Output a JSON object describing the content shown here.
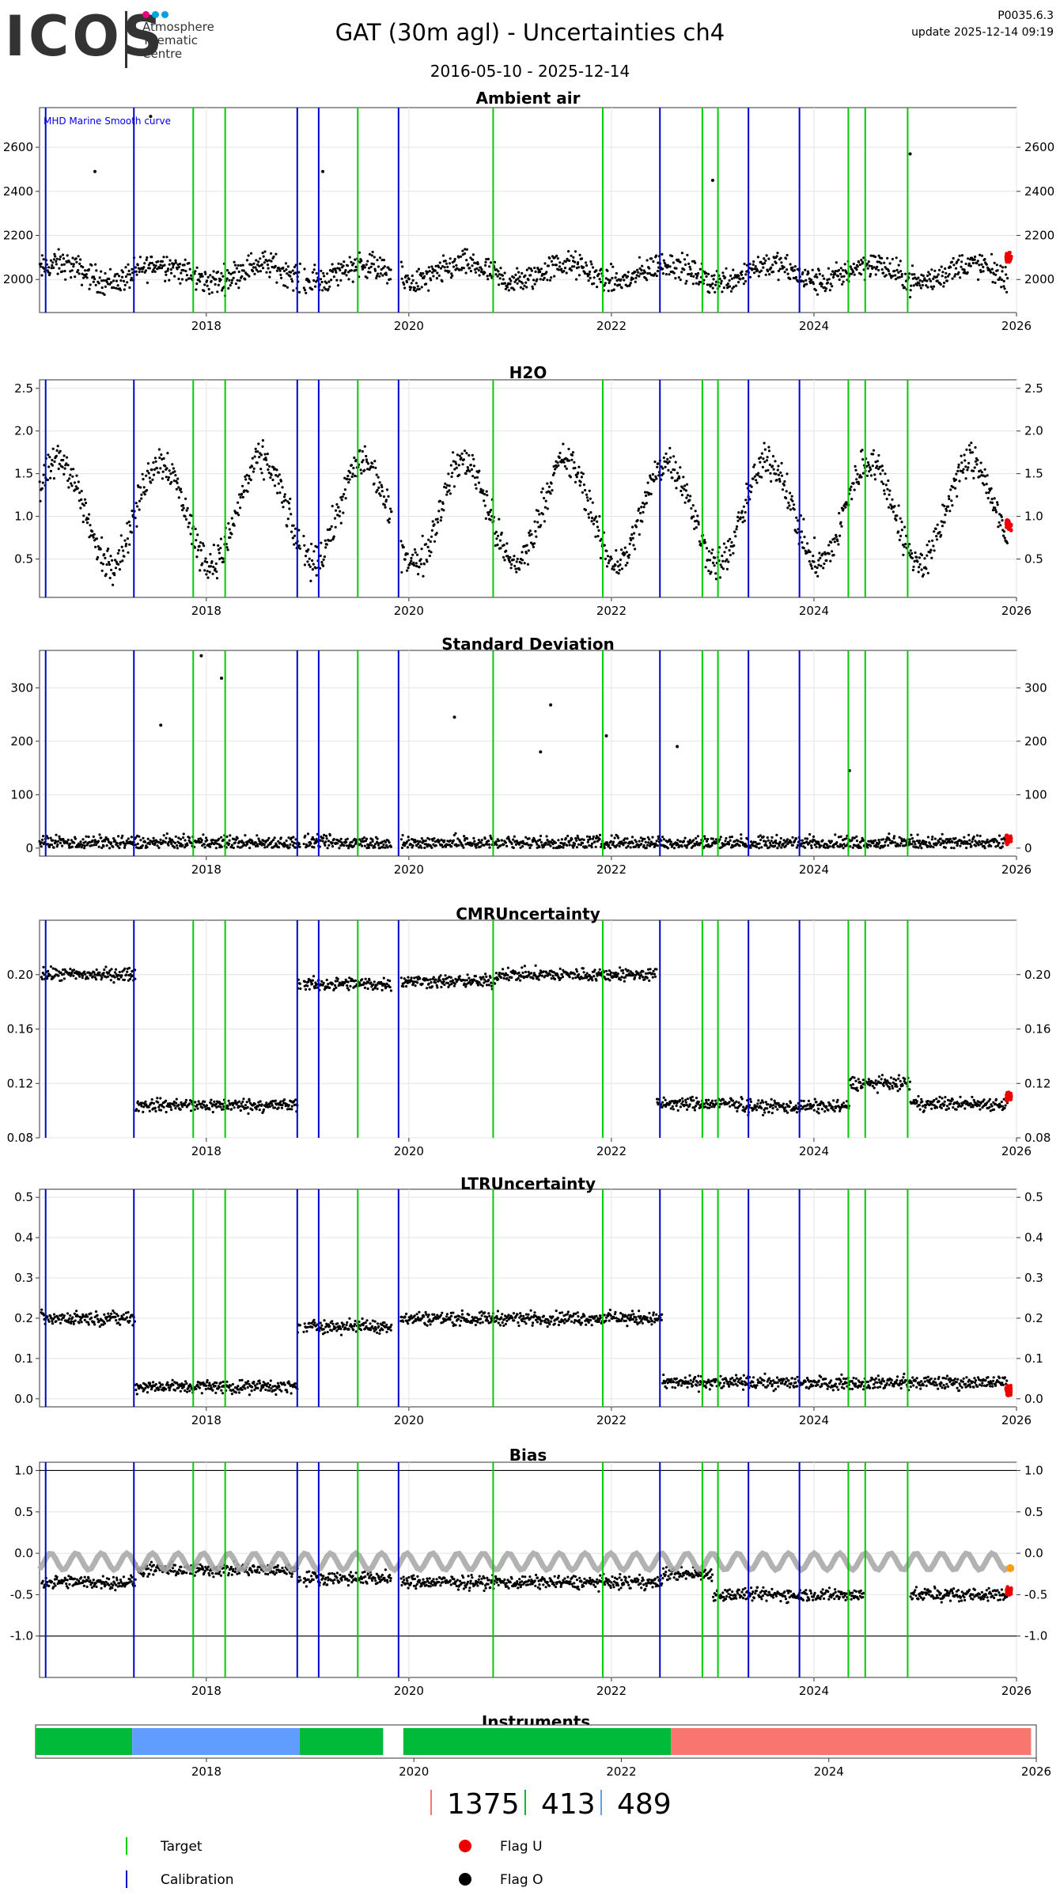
{
  "header": {
    "logo": "ICOS",
    "logo_sub": [
      "Atmosphere",
      "Thematic",
      "Centre"
    ],
    "title": "GAT  (30m agl) - Uncertainties ch4",
    "date_range": "2016-05-10 - 2025-12-14",
    "version": "P0035.6.3",
    "update": "update  2025-12-14 09:19"
  },
  "colors": {
    "target": "#00cc00",
    "calibration": "#0000cc",
    "flag_u": "#ee0000",
    "flag_o": "#000000",
    "bias_ref": "#aaaaaa",
    "instrument_green": "#00bb3a",
    "instrument_blue": "#619cff",
    "instrument_red": "#f8766d"
  },
  "chart_data": [
    {
      "type": "scatter",
      "title": "Ambient air",
      "annotation": "MHD Marine Smooth curve",
      "x_range": [
        "2016-05-10",
        "2026-01-01"
      ],
      "ylim": [
        1850,
        2780
      ],
      "yticks": [
        2000,
        2200,
        2400,
        2600
      ],
      "xticks": [
        "2018",
        "2020",
        "2022",
        "2024",
        "2026"
      ],
      "grid": true,
      "baseline": 2030,
      "spread": 90,
      "seasonal": 40,
      "spikes": [
        [
          2016.9,
          2490
        ],
        [
          2017.45,
          2740
        ],
        [
          2019.15,
          2490
        ],
        [
          2023.0,
          2450
        ],
        [
          2024.95,
          2570
        ]
      ],
      "flag_u_level": 2100
    },
    {
      "type": "scatter",
      "title": "H2O",
      "ylim": [
        0.05,
        2.6
      ],
      "yticks": [
        0.5,
        1.0,
        1.5,
        2.0,
        2.5
      ],
      "xticks": [
        "2018",
        "2020",
        "2022",
        "2024",
        "2026"
      ],
      "grid": true,
      "baseline": 1.05,
      "spread": 0.3,
      "seasonal": 0.6,
      "flag_u_level": 0.9
    },
    {
      "type": "scatter",
      "title": "Standard Deviation",
      "ylim": [
        -15,
        370
      ],
      "yticks": [
        0,
        100,
        200,
        300
      ],
      "xticks": [
        "2018",
        "2020",
        "2022",
        "2024",
        "2026"
      ],
      "grid": true,
      "baseline": 10,
      "spread": 20,
      "seasonal": 0,
      "spikes": [
        [
          2017.95,
          360
        ],
        [
          2018.15,
          318
        ],
        [
          2017.55,
          230
        ],
        [
          2020.45,
          245
        ],
        [
          2021.4,
          268
        ],
        [
          2021.3,
          180
        ],
        [
          2021.95,
          210
        ],
        [
          2022.65,
          190
        ],
        [
          2024.35,
          145
        ]
      ],
      "flag_u_level": 15
    },
    {
      "type": "scatter",
      "title": "CMRUncertainty",
      "ylim": [
        0.08,
        0.24
      ],
      "yticks": [
        0.08,
        0.12,
        0.16,
        0.2
      ],
      "xticks": [
        "2018",
        "2020",
        "2022",
        "2024",
        "2026"
      ],
      "grid": true,
      "segments": [
        [
          2016.37,
          2017.3,
          0.2
        ],
        [
          2017.3,
          2018.9,
          0.104
        ],
        [
          2018.9,
          2019.85,
          0.193
        ],
        [
          2019.9,
          2020.85,
          0.195
        ],
        [
          2020.85,
          2022.45,
          0.2
        ],
        [
          2022.45,
          2023.3,
          0.105
        ],
        [
          2023.3,
          2024.35,
          0.103
        ],
        [
          2024.35,
          2024.95,
          0.12
        ],
        [
          2024.95,
          2025.95,
          0.105
        ]
      ],
      "flag_u_level": 0.11
    },
    {
      "type": "scatter",
      "title": "LTRUncertainty",
      "ylim": [
        -0.02,
        0.52
      ],
      "yticks": [
        0.0,
        0.1,
        0.2,
        0.3,
        0.4,
        0.5
      ],
      "xticks": [
        "2018",
        "2020",
        "2022",
        "2024",
        "2026"
      ],
      "grid": true,
      "segments": [
        [
          2016.37,
          2017.3,
          0.2
        ],
        [
          2017.3,
          2018.9,
          0.03
        ],
        [
          2018.9,
          2019.85,
          0.18
        ],
        [
          2019.9,
          2022.5,
          0.2
        ],
        [
          2022.5,
          2025.95,
          0.04
        ]
      ],
      "flag_u_level": 0.02
    },
    {
      "type": "scatter",
      "title": "Bias",
      "ylim": [
        -1.5,
        1.1
      ],
      "yticks": [
        -1.0,
        -0.5,
        0.0,
        0.5,
        1.0
      ],
      "xticks": [
        "2018",
        "2020",
        "2022",
        "2024",
        "2026"
      ],
      "grid": true,
      "hlines": [
        -1.0,
        1.0
      ],
      "segments": [
        [
          2016.37,
          2017.3,
          -0.35
        ],
        [
          2017.3,
          2018.9,
          -0.2
        ],
        [
          2018.9,
          2019.85,
          -0.3
        ],
        [
          2019.9,
          2022.5,
          -0.35
        ],
        [
          2022.5,
          2023.0,
          -0.25
        ],
        [
          2023.0,
          2024.5,
          -0.5
        ],
        [
          2024.95,
          2025.95,
          -0.5
        ]
      ],
      "flag_u_level": -0.45
    }
  ],
  "instruments": {
    "title": "Instruments",
    "xticks": [
      "2018",
      "2020",
      "2022",
      "2024",
      "2026"
    ],
    "x_range": [
      "2016-05-10",
      "2026-01-01"
    ],
    "blocks": [
      [
        "2016-05-10",
        "2017-04-15",
        "green"
      ],
      [
        "2017-04-15",
        "2018-11-25",
        "blue"
      ],
      [
        "2018-11-25",
        "2019-09-15",
        "green"
      ],
      [
        "2019-11-25",
        "2022-06-25",
        "green"
      ],
      [
        "2022-06-25",
        "2025-12-14",
        "red"
      ]
    ],
    "counts": [
      "1375",
      "413",
      "489"
    ]
  },
  "markers": {
    "target": [
      "2017-11-15",
      "2018-03-10",
      "2019-07-01",
      "2020-11-01",
      "2021-12-01",
      "2022-11-25",
      "2023-01-20",
      "2024-05-05",
      "2024-07-05",
      "2024-12-05"
    ],
    "calibration": [
      "2016-06-01",
      "2017-04-15",
      "2018-11-25",
      "2019-02-10",
      "2019-11-25",
      "2022-06-25",
      "2023-05-10",
      "2023-11-10"
    ]
  },
  "legend": {
    "target": "Target",
    "calibration": "Calibration",
    "flag_u": "Flag U",
    "flag_o": "Flag O"
  }
}
